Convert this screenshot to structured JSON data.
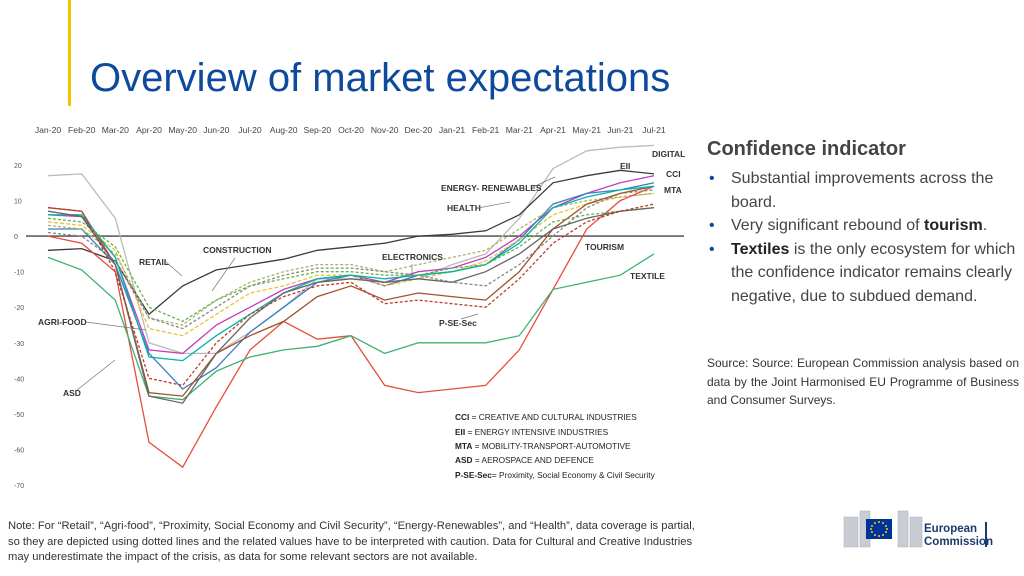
{
  "title": "Overview of market expectations",
  "colors": {
    "title": "#0e4a9c",
    "accent": "#f5c400"
  },
  "sidebar": {
    "heading": "Confidence indicator",
    "b1": "Substantial improvements across the board.",
    "b2_pre": "Very significant rebound of ",
    "b2_bold": "tourism",
    "b2_post": ".",
    "b3_bold": "Textiles",
    "b3_post": " is the only ecosystem for which the confidence indicator remains clearly negative, due to subdued demand."
  },
  "source": "Source: Source: European Commission analysis based on data by the Joint Harmonised EU Programme of Business and Consumer Surveys.",
  "note": "Note: For “Retail”, “Agri-food”, “Proximity, Social Economy and Civil Security”, “Energy-Renewables”, and “Health”, data coverage is partial, so they are depicted using dotted lines and the related values have to be interpreted with caution. Data for Cultural and Creative Industries may underestimate the impact of the crisis, as data for some relevant sectors are not available.",
  "logo": {
    "line1": "European",
    "line2": "Commission"
  },
  "chart_data": {
    "type": "line",
    "x": [
      "Jan-20",
      "Feb-20",
      "Mar-20",
      "Apr-20",
      "May-20",
      "Jun-20",
      "Jul-20",
      "Aug-20",
      "Sep-20",
      "Oct-20",
      "Nov-20",
      "Dec-20",
      "Jan-21",
      "Feb-21",
      "Mar-21",
      "Apr-21",
      "May-21",
      "Jun-21",
      "Jul-21"
    ],
    "ylim": [
      -70,
      20
    ],
    "yticks": [
      20,
      10,
      0,
      -10,
      -20,
      -30,
      -40,
      -50,
      -60,
      -70
    ],
    "series": [
      {
        "name": "DIGITAL",
        "color": "#bbbbbb",
        "dash": "",
        "values": [
          17,
          17.5,
          5,
          -30,
          -33,
          -33,
          -27,
          -20,
          -12,
          -12,
          -13,
          -12,
          -8,
          -5,
          5,
          19,
          24,
          25,
          25.5
        ]
      },
      {
        "name": "EII",
        "color": "#3a3a3a",
        "dash": "",
        "values": [
          -4,
          -3.5,
          -7,
          -22,
          -14,
          -9.5,
          -8,
          -6.5,
          -4,
          -3,
          -2,
          0,
          0.5,
          1.5,
          6,
          15,
          17,
          18.5,
          17.5
        ]
      },
      {
        "name": "CCI",
        "color": "#c23fc0",
        "dash": "",
        "values": [
          6,
          5.5,
          -6,
          -32,
          -33,
          -25,
          -20,
          -15,
          -12,
          -11,
          -13,
          -10,
          -9,
          -6,
          0,
          8,
          12,
          15,
          17
        ]
      },
      {
        "name": "MTA",
        "color": "#3a7fc1",
        "dash": "",
        "values": [
          2,
          2,
          -8,
          -33,
          -43,
          -37,
          -27,
          -20,
          -13,
          -11,
          -14,
          -11,
          -10,
          -8,
          -1,
          9,
          12,
          13,
          15
        ]
      },
      {
        "name": "ENERGY- RENEWABLES",
        "color": "#e8c23a",
        "dash": "4,2",
        "values": [
          4,
          3,
          -4,
          -26,
          -28,
          -22,
          -16,
          -14,
          -11,
          -11,
          -14,
          -12,
          -10,
          -7,
          -1,
          6,
          9,
          11,
          12
        ]
      },
      {
        "name": "HEALTH",
        "color": "#aab36a",
        "dash": "3,2",
        "values": [
          3,
          2,
          -5,
          -23,
          -25,
          -18,
          -13,
          -10,
          -8,
          -8,
          -10,
          -8,
          -6,
          -4,
          2,
          8,
          10,
          11,
          12
        ]
      },
      {
        "name": "TOURISM",
        "color": "#e74c3c",
        "dash": "",
        "values": [
          0,
          -2,
          -10,
          -58,
          -65,
          -48,
          -32,
          -24,
          -29,
          -28,
          -42,
          -44,
          -43,
          -42,
          -32,
          -15,
          2,
          10,
          14
        ]
      },
      {
        "name": "TEXTILE",
        "color": "#3cb371",
        "dash": "",
        "values": [
          -6,
          -9.5,
          -18,
          -45,
          -46,
          -38,
          -34,
          -32,
          -31,
          -28,
          -33,
          -30,
          -30,
          -30,
          -28,
          -15,
          -13,
          -11,
          -5
        ]
      },
      {
        "name": "RETAIL",
        "color": "#888888",
        "dash": "3,2",
        "values": [
          1,
          0,
          -7,
          -23,
          -26,
          -20,
          -14,
          -11,
          -9,
          -9,
          -10,
          -11,
          -13,
          -14,
          -8,
          0,
          8,
          12,
          13
        ]
      },
      {
        "name": "CONSTRUCTION",
        "color": "#a0522d",
        "dash": "",
        "values": [
          8,
          7,
          -8,
          -44,
          -45,
          -33,
          -28,
          -24,
          -17,
          -14,
          -18,
          -16,
          -17,
          -18,
          -10,
          2,
          9,
          12,
          14
        ]
      },
      {
        "name": "ELECTRONICS",
        "color": "#00b5a8",
        "dash": "",
        "values": [
          6,
          6,
          -6,
          -34,
          -35,
          -28,
          -22,
          -16,
          -12,
          -11,
          -12,
          -11,
          -10,
          -8,
          -2,
          8,
          11,
          13,
          14
        ]
      },
      {
        "name": "AGRI-FOOD",
        "color": "#6ab04c",
        "dash": "3,2",
        "values": [
          5,
          4,
          -3,
          -20,
          -24,
          -18,
          -14,
          -12,
          -10,
          -10,
          -11,
          -11,
          -9,
          -8,
          -3,
          4,
          6,
          7,
          8
        ]
      },
      {
        "name": "ASD",
        "color": "#666666",
        "dash": "",
        "values": [
          7,
          5.5,
          -8,
          -45,
          -47,
          -33,
          -23,
          -16,
          -13,
          -12,
          -13,
          -12,
          -13,
          -10,
          -5,
          2,
          5,
          7,
          8
        ]
      },
      {
        "name": "P-SE-Sec",
        "color": "#c0392b",
        "dash": "3,2",
        "values": [
          8,
          7,
          -10,
          -40,
          -42,
          -30,
          -22,
          -17,
          -14,
          -13,
          -19,
          -18,
          -19,
          -20,
          -12,
          -2,
          4,
          7,
          9
        ]
      }
    ],
    "labels": {
      "digital": "DIGITAL",
      "eii": "EII",
      "cci": "CCI",
      "mta": "MTA",
      "energy": "ENERGY- RENEWABLES",
      "health": "HEALTH",
      "construction": "CONSTRUCTION",
      "electronics": "ELECTRONICS",
      "retail": "RETAIL",
      "tourism": "TOURISM",
      "textile": "TEXTILE",
      "agri": "AGRI-FOOD",
      "psesec": "P-SE-Sec",
      "asd": "ASD"
    },
    "legend": [
      {
        "abbr": "CCI",
        "text": " = CREATIVE AND CULTURAL INDUSTRIES"
      },
      {
        "abbr": "EII",
        "text": " = ENERGY INTENSIVE INDUSTRIES"
      },
      {
        "abbr": "MTA",
        "text": " = MOBILITY-TRANSPORT-AUTOMOTIVE"
      },
      {
        "abbr": "ASD",
        "text": " = AEROSPACE AND DEFENCE"
      },
      {
        "abbr": "P-SE-Sec",
        "text": "= Proximity, Social Economy  & Civil Security"
      }
    ]
  }
}
